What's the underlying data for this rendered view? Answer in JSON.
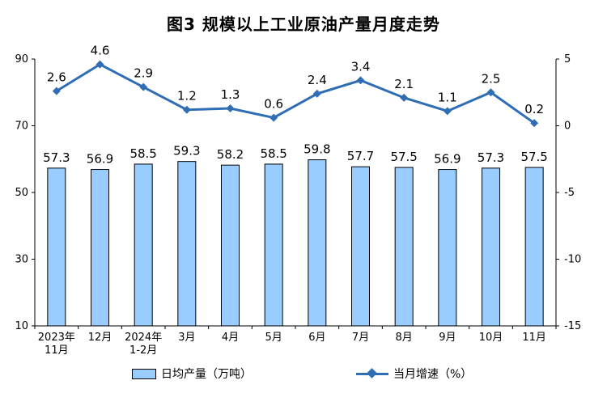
{
  "chart_data": {
    "type": "bar+line",
    "title": "图3  规模以上工业原油产量月度走势",
    "categories": [
      [
        "2023年",
        "11月"
      ],
      [
        "12月"
      ],
      [
        "2024年",
        "1-2月"
      ],
      [
        "3月"
      ],
      [
        "4月"
      ],
      [
        "5月"
      ],
      [
        "6月"
      ],
      [
        "7月"
      ],
      [
        "8月"
      ],
      [
        "9月"
      ],
      [
        "10月"
      ],
      [
        "11月"
      ]
    ],
    "series": [
      {
        "name": "日均产量（万吨）",
        "type": "bar",
        "axis": "left",
        "color": "#99ccff",
        "values": [
          57.3,
          56.9,
          58.5,
          59.3,
          58.2,
          58.5,
          59.8,
          57.7,
          57.5,
          56.9,
          57.3,
          57.5
        ],
        "labels": [
          "57.3",
          "56.9",
          "58.5",
          "59.3",
          "58.2",
          "58.5",
          "59.8",
          "57.7",
          "57.5",
          "56.9",
          "57.3",
          "57.5"
        ]
      },
      {
        "name": "当月增速（%）",
        "type": "line",
        "axis": "right",
        "color": "#2f6db5",
        "values": [
          2.6,
          4.6,
          2.9,
          1.2,
          1.3,
          0.6,
          2.4,
          3.4,
          2.1,
          1.1,
          2.5,
          0.2
        ],
        "labels": [
          "2.6",
          "4.6",
          "2.9",
          "1.2",
          "1.3",
          "0.6",
          "2.4",
          "3.4",
          "2.1",
          "1.1",
          "2.5",
          "0.2"
        ]
      }
    ],
    "left_axis": {
      "range": [
        10,
        90
      ],
      "ticks": [
        "10",
        "30",
        "50",
        "70",
        "90"
      ],
      "tick_values": [
        10,
        30,
        50,
        70,
        90
      ]
    },
    "right_axis": {
      "range": [
        -15,
        5
      ],
      "ticks": [
        "-15",
        "-10",
        "-5",
        "0",
        "5"
      ],
      "tick_values": [
        -15,
        -10,
        -5,
        0,
        5
      ]
    },
    "grid": false,
    "legend_position": "bottom"
  }
}
